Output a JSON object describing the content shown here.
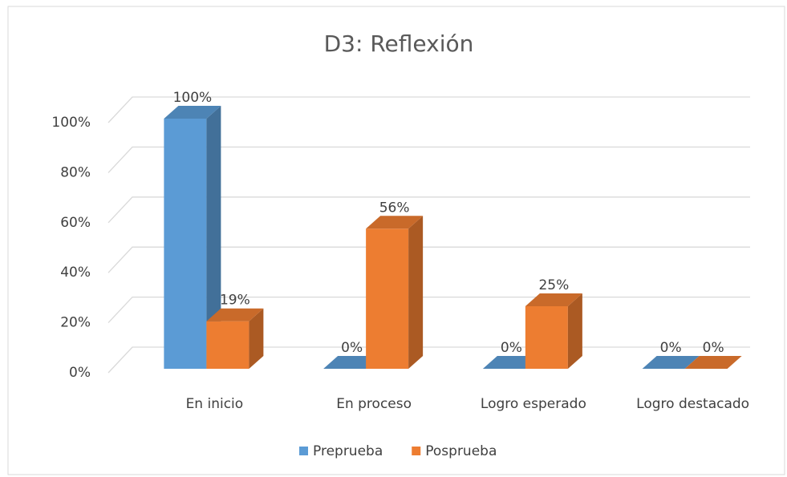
{
  "chart_data": {
    "type": "bar3d",
    "title": "D3: Reflexión",
    "categories": [
      "En inicio",
      "En proceso",
      "Logro esperado",
      "Logro destacado"
    ],
    "series": [
      {
        "name": "Preprueba",
        "color": "#5b9bd5",
        "values": [
          100,
          0,
          0,
          0
        ],
        "value_labels": [
          "100%",
          "0%",
          "0%",
          "0%"
        ]
      },
      {
        "name": "Posprueba",
        "color": "#ed7d31",
        "values": [
          19,
          56,
          25,
          0
        ],
        "value_labels": [
          "19%",
          "56%",
          "25%",
          "0%"
        ]
      }
    ],
    "ylim": [
      0,
      100
    ],
    "yticks": [
      {
        "value": 0,
        "label": "0%"
      },
      {
        "value": 20,
        "label": "20%"
      },
      {
        "value": 40,
        "label": "40%"
      },
      {
        "value": 60,
        "label": "60%"
      },
      {
        "value": 80,
        "label": "80%"
      },
      {
        "value": 100,
        "label": "100%"
      }
    ],
    "grid": true,
    "legend": "bottom"
  }
}
